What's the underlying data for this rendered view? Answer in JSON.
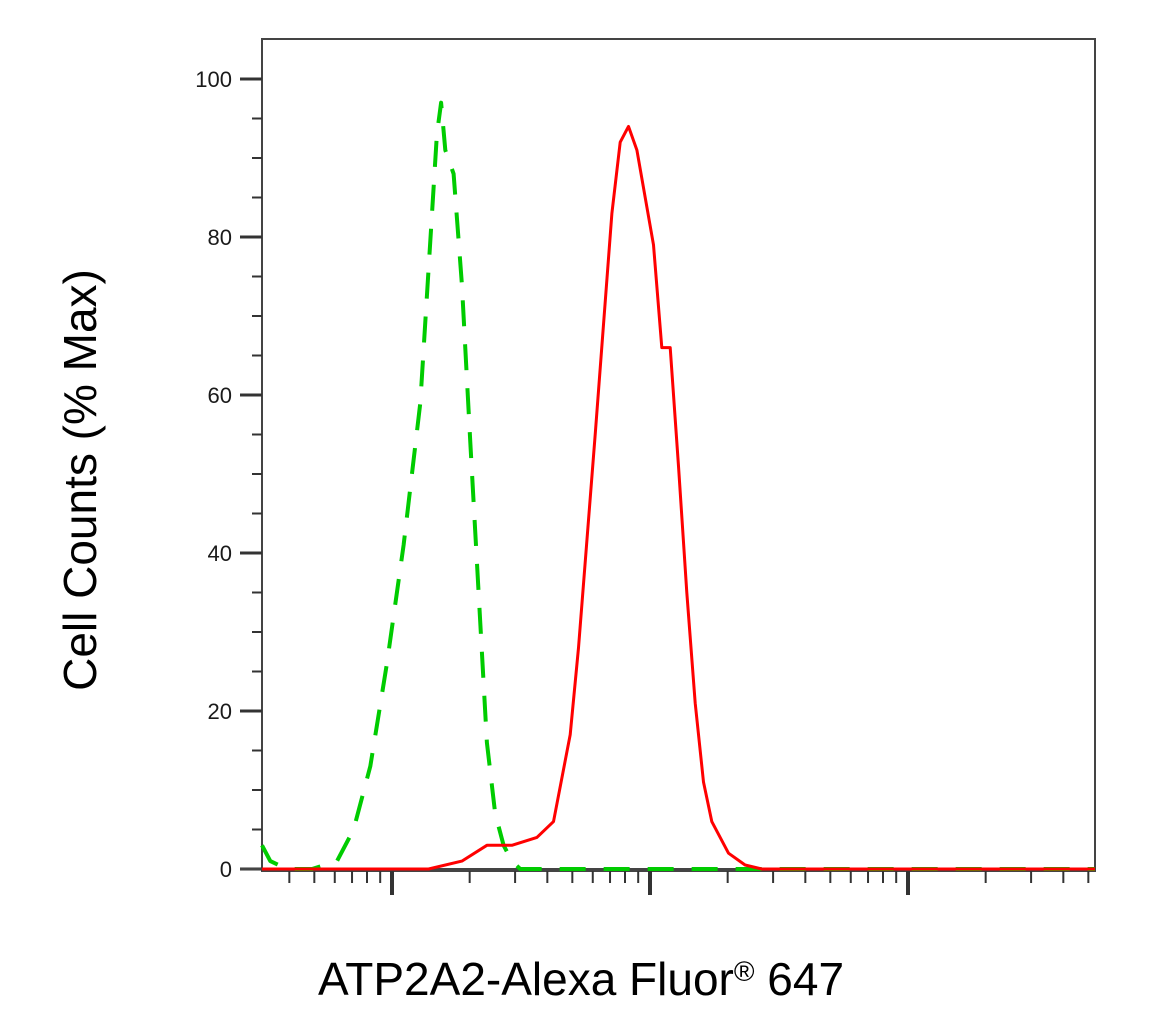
{
  "chart_data": {
    "type": "line",
    "title": "",
    "xlabel": "ATP2A2-Alexa Fluor",
    "xlabel_superscript": "®",
    "xlabel_suffix": " 647",
    "ylabel": "Cell Counts (% Max)",
    "x_scale": "log (unlabeled decades)",
    "xlim": [
      0,
      1
    ],
    "ylim": [
      0,
      105
    ],
    "y_ticks": [
      0,
      20,
      40,
      60,
      80,
      100
    ],
    "y_tick_labels": [
      "0",
      "20",
      "40",
      "60",
      "80",
      "100"
    ],
    "grid": false,
    "legend": "none",
    "series": [
      {
        "style": "dashed",
        "color": "#00cc00",
        "x": [
          0.0,
          0.01,
          0.03,
          0.06,
          0.09,
          0.11,
          0.13,
          0.15,
          0.17,
          0.19,
          0.2,
          0.21,
          0.215,
          0.22,
          0.23,
          0.24,
          0.25,
          0.26,
          0.27,
          0.28,
          0.29,
          0.3,
          0.31,
          0.33,
          0.35,
          0.4,
          0.6,
          0.8,
          1.0
        ],
        "y": [
          3,
          1,
          0,
          0,
          1,
          5,
          13,
          26,
          41,
          59,
          76,
          93,
          97,
          91,
          88,
          74,
          54,
          35,
          16,
          7,
          3,
          1,
          0,
          0,
          0,
          0,
          0,
          0,
          0
        ]
      },
      {
        "style": "solid",
        "color": "#ff0000",
        "x": [
          0.0,
          0.1,
          0.2,
          0.24,
          0.27,
          0.3,
          0.33,
          0.35,
          0.37,
          0.38,
          0.4,
          0.42,
          0.43,
          0.44,
          0.45,
          0.46,
          0.47,
          0.48,
          0.49,
          0.5,
          0.51,
          0.52,
          0.53,
          0.54,
          0.56,
          0.58,
          0.6,
          0.62,
          0.66,
          0.8,
          1.0
        ],
        "y": [
          0,
          0,
          0,
          1,
          3,
          3,
          4,
          6,
          17,
          28,
          55,
          83,
          92,
          94,
          91,
          85,
          79,
          66,
          66,
          51,
          35,
          21,
          11,
          6,
          2,
          0.5,
          0,
          0,
          0,
          0,
          0
        ]
      }
    ]
  }
}
